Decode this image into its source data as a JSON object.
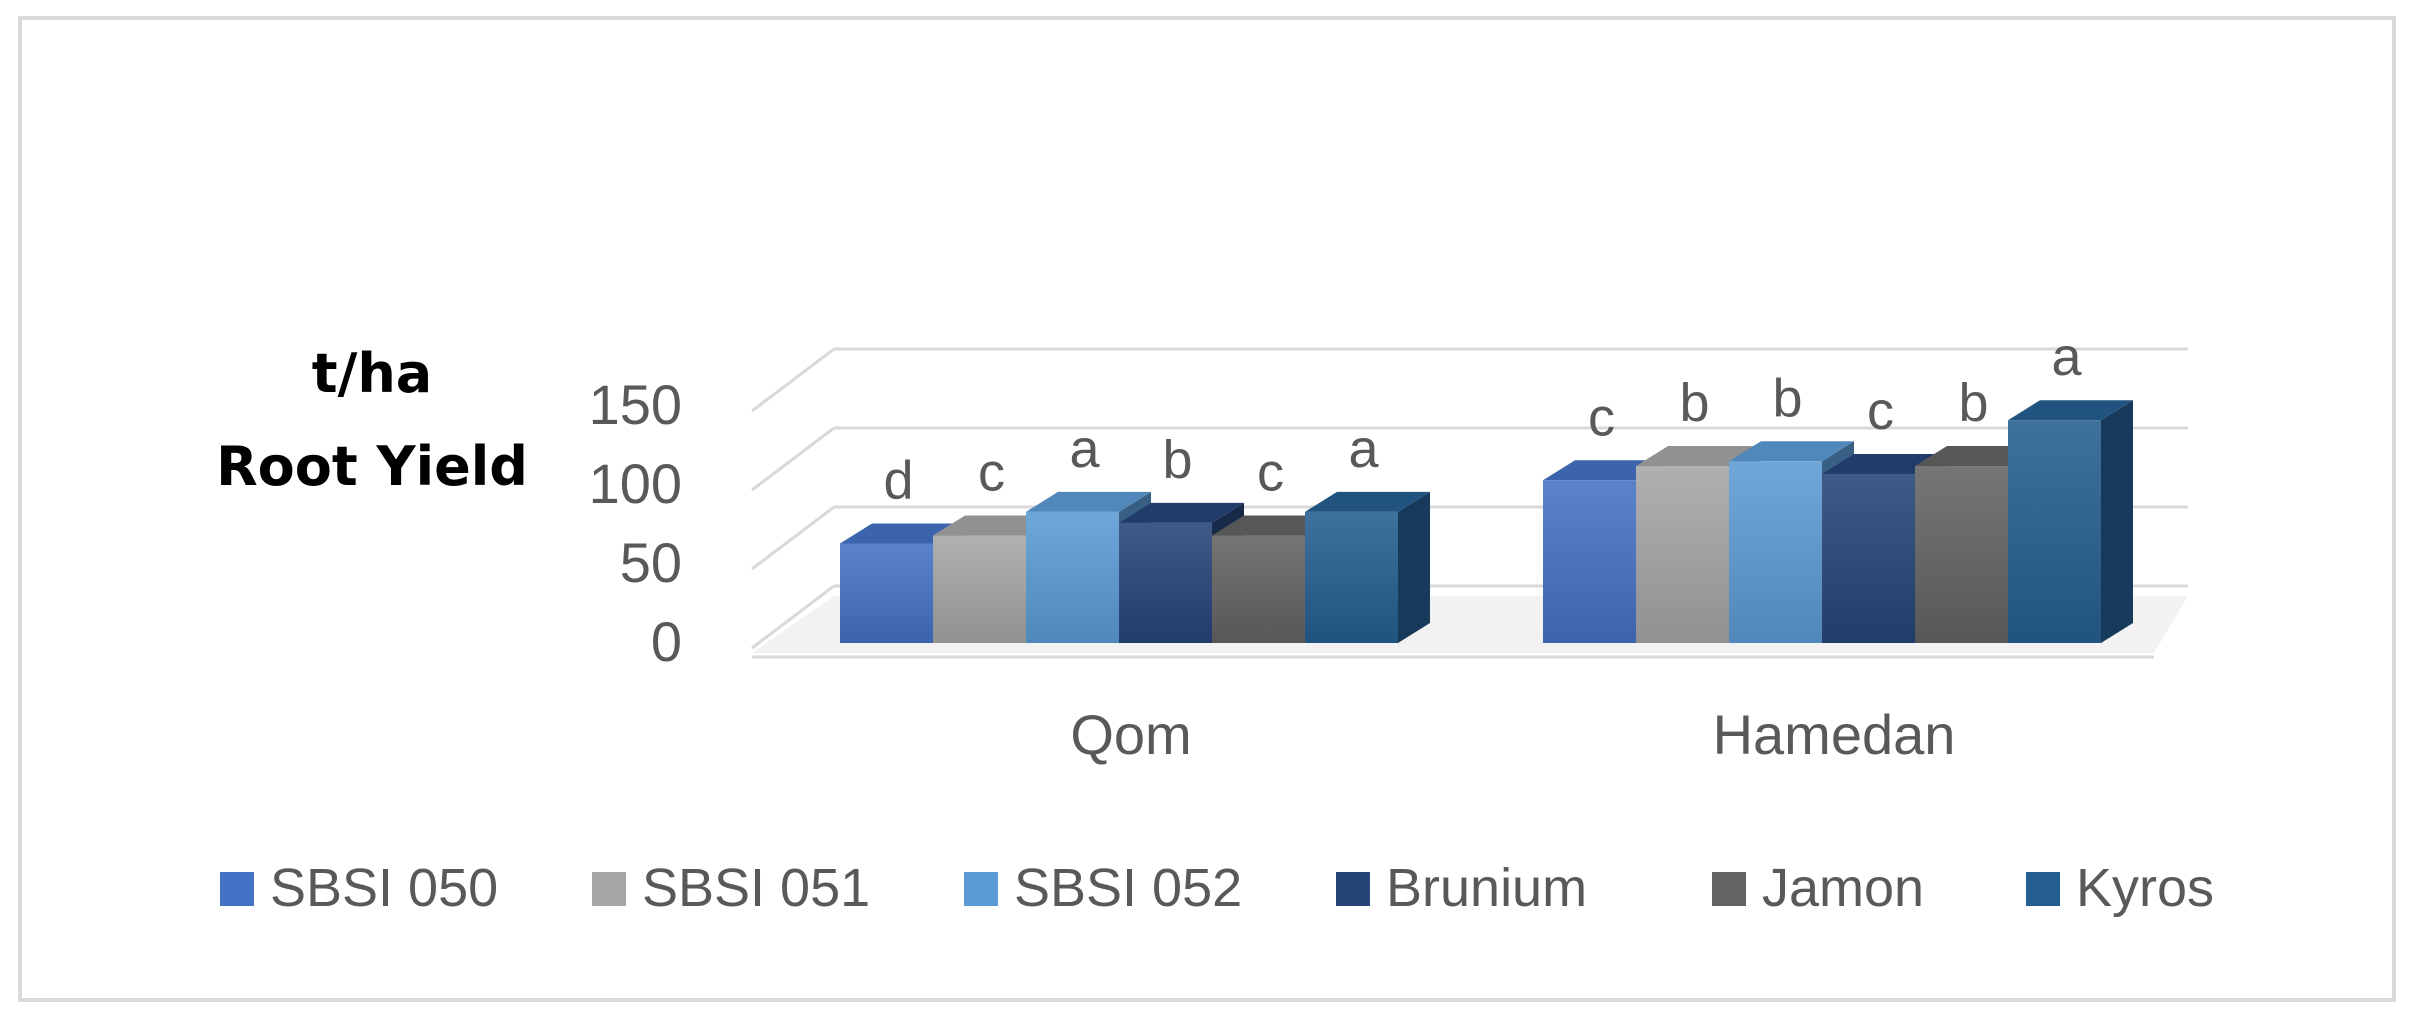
{
  "chart_data": {
    "type": "bar",
    "ylabel_lines": [
      "t/ha",
      "Root Yield"
    ],
    "categories": [
      "Qom",
      "Hamedan"
    ],
    "y_ticks": [
      "0",
      "50",
      "100",
      "150"
    ],
    "ylim": [
      0,
      150
    ],
    "grid": true,
    "legend_position": "bottom",
    "series": [
      {
        "name": "SBSI 050",
        "values": [
          63,
          103
        ],
        "letters": [
          "d",
          "c"
        ],
        "color": "#4472c4"
      },
      {
        "name": "SBSI 051",
        "values": [
          68,
          112
        ],
        "letters": [
          "c",
          "b"
        ],
        "color": "#a5a5a5"
      },
      {
        "name": "SBSI 052",
        "values": [
          83,
          115
        ],
        "letters": [
          "a",
          "b"
        ],
        "color": "#5b9bd5"
      },
      {
        "name": "Brunium",
        "values": [
          76,
          107
        ],
        "letters": [
          "b",
          "c"
        ],
        "color": "#264478"
      },
      {
        "name": "Jamon",
        "values": [
          68,
          112
        ],
        "letters": [
          "c",
          "b"
        ],
        "color": "#636363"
      },
      {
        "name": "Kyros",
        "values": [
          83,
          141
        ],
        "letters": [
          "a",
          "a"
        ],
        "color": "#255e91"
      }
    ]
  }
}
